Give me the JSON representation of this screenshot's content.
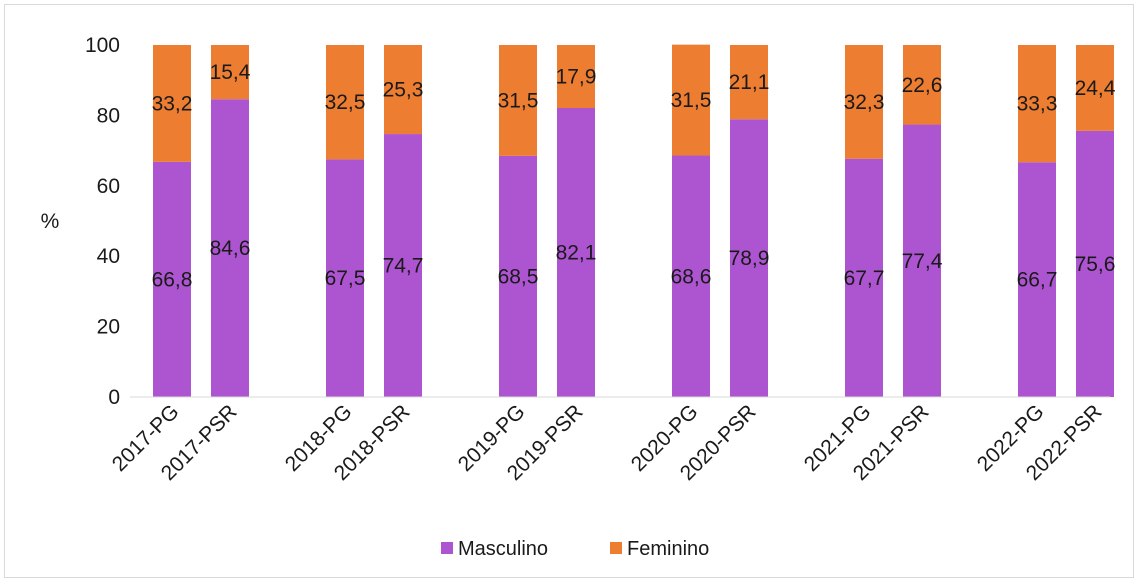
{
  "chart_data": {
    "type": "bar",
    "stacked": true,
    "ylabel": "%",
    "xlabel": "",
    "ylim": [
      0,
      100
    ],
    "yticks": [
      0,
      20,
      40,
      60,
      80,
      100
    ],
    "grid": false,
    "legend_position": "bottom",
    "categories": [
      "2017-PG",
      "2017-PSR",
      "2018-PG",
      "2018-PSR",
      "2019-PG",
      "2019-PSR",
      "2020-PG",
      "2020-PSR",
      "2021-PG",
      "2021-PSR",
      "2022-PG",
      "2022-PSR"
    ],
    "series": [
      {
        "name": "Masculino",
        "color": "#ad55d1",
        "values": [
          66.8,
          84.6,
          67.5,
          74.7,
          68.5,
          82.1,
          68.6,
          78.9,
          67.7,
          77.4,
          66.7,
          75.6
        ],
        "labels": [
          "66,8",
          "84,6",
          "67,5",
          "74,7",
          "68,5",
          "82,1",
          "68,6",
          "78,9",
          "67,7",
          "77,4",
          "66,7",
          "75,6"
        ]
      },
      {
        "name": "Feminino",
        "color": "#ed7d31",
        "values": [
          33.2,
          15.4,
          32.5,
          25.3,
          31.5,
          17.9,
          31.5,
          21.1,
          32.3,
          22.6,
          33.3,
          24.4
        ],
        "labels": [
          "33,2",
          "15,4",
          "32,5",
          "25,3",
          "31,5",
          "17,9",
          "31,5",
          "21,1",
          "32,3",
          "22,6",
          "33,3",
          "24,4"
        ]
      }
    ]
  }
}
